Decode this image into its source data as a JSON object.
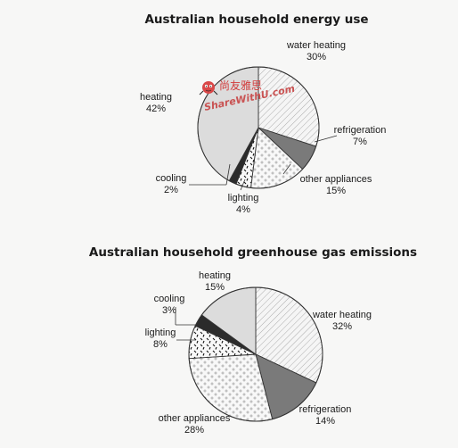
{
  "watermark": {
    "chinese": "尚友雅思",
    "latin": "ShareWithU.com"
  },
  "chart_data": [
    {
      "type": "pie",
      "title": "Australian household energy use",
      "slices": [
        {
          "label": "water heating",
          "value": 30,
          "value_label": "30%",
          "fill": "hatch"
        },
        {
          "label": "refrigeration",
          "value": 7,
          "value_label": "7%",
          "fill": "#7a7a7a"
        },
        {
          "label": "other appliances",
          "value": 15,
          "value_label": "15%",
          "fill": "dots"
        },
        {
          "label": "lighting",
          "value": 4,
          "value_label": "4%",
          "fill": "dashes"
        },
        {
          "label": "cooling",
          "value": 2,
          "value_label": "2%",
          "fill": "#2b2b2b"
        },
        {
          "label": "heating",
          "value": 42,
          "value_label": "42%",
          "fill": "#dcdcdc"
        }
      ]
    },
    {
      "type": "pie",
      "title": "Australian household greenhouse gas emissions",
      "slices": [
        {
          "label": "water heating",
          "value": 32,
          "value_label": "32%",
          "fill": "hatch"
        },
        {
          "label": "refrigeration",
          "value": 14,
          "value_label": "14%",
          "fill": "#7a7a7a"
        },
        {
          "label": "other appliances",
          "value": 28,
          "value_label": "28%",
          "fill": "dots"
        },
        {
          "label": "lighting",
          "value": 8,
          "value_label": "8%",
          "fill": "dashes"
        },
        {
          "label": "cooling",
          "value": 3,
          "value_label": "3%",
          "fill": "#2b2b2b"
        },
        {
          "label": "heating",
          "value": 15,
          "value_label": "15%",
          "fill": "#dcdcdc"
        }
      ]
    }
  ]
}
